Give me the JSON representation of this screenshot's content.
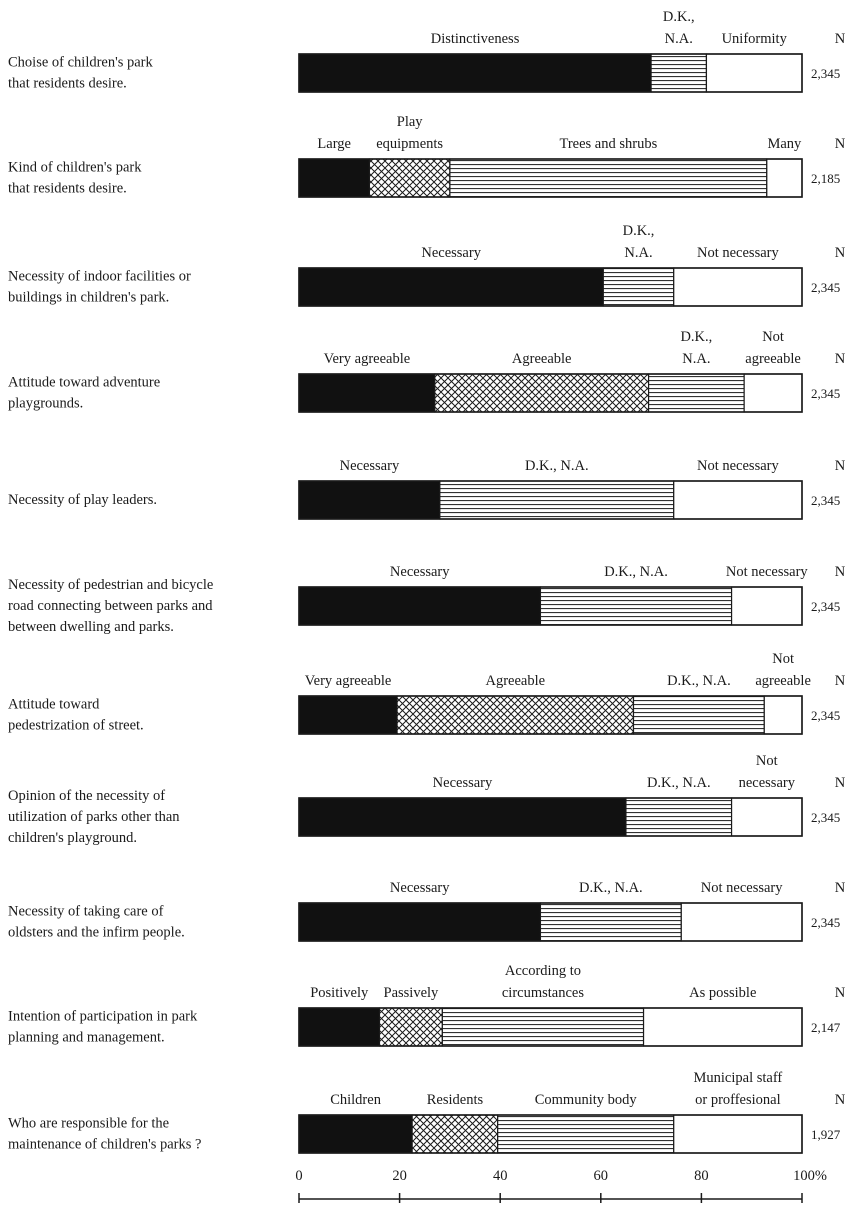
{
  "chart_data": {
    "type": "bar",
    "orientation": "horizontal",
    "stacked": true,
    "percent_stacked": true,
    "xlim": [
      0,
      100
    ],
    "x_ticks": [
      "0",
      "20",
      "40",
      "60",
      "80",
      "100%"
    ],
    "n_header": "N",
    "rows": [
      {
        "label": [
          "Choise of children's park",
          "that residents desire."
        ],
        "n": "2,345",
        "segments": [
          {
            "name": [
              "Distinctiveness"
            ],
            "value": 70,
            "pattern": "solid"
          },
          {
            "name": [
              "D.K.,",
              "N.A."
            ],
            "value": 11,
            "pattern": "hlines"
          },
          {
            "name": [
              "Uniformity"
            ],
            "value": 19,
            "pattern": "blank"
          }
        ]
      },
      {
        "label": [
          "Kind of children's park",
          "that residents desire."
        ],
        "n": "2,185",
        "segments": [
          {
            "name": [
              "Large"
            ],
            "value": 14,
            "pattern": "solid"
          },
          {
            "name": [
              "Play",
              "equipments"
            ],
            "value": 16,
            "pattern": "crosshatch"
          },
          {
            "name": [
              "Trees and shrubs"
            ],
            "value": 63,
            "pattern": "hlines"
          },
          {
            "name": [
              "Many"
            ],
            "value": 7,
            "pattern": "blank"
          }
        ]
      },
      {
        "label": [
          "Necessity of indoor facilities or",
          "buildings in children's park."
        ],
        "n": "2,345",
        "segments": [
          {
            "name": [
              "Necessary"
            ],
            "value": 60.5,
            "pattern": "solid"
          },
          {
            "name": [
              "D.K.,",
              "N.A."
            ],
            "value": 14,
            "pattern": "hlines"
          },
          {
            "name": [
              "Not necessary"
            ],
            "value": 25.5,
            "pattern": "blank"
          }
        ]
      },
      {
        "label": [
          "Attitude toward adventure",
          "playgrounds."
        ],
        "n": "2,345",
        "segments": [
          {
            "name": [
              "Very agreeable"
            ],
            "value": 27,
            "pattern": "solid"
          },
          {
            "name": [
              "Agreeable"
            ],
            "value": 42.5,
            "pattern": "crosshatch"
          },
          {
            "name": [
              "D.K.,",
              "N.A."
            ],
            "value": 19,
            "pattern": "hlines"
          },
          {
            "name": [
              "Not",
              "agreeable"
            ],
            "value": 11.5,
            "pattern": "blank"
          }
        ]
      },
      {
        "label": [
          "Necessity of play leaders."
        ],
        "n": "2,345",
        "segments": [
          {
            "name": [
              "Necessary"
            ],
            "value": 28,
            "pattern": "solid"
          },
          {
            "name": [
              "D.K., N.A."
            ],
            "value": 46.5,
            "pattern": "hlines"
          },
          {
            "name": [
              "Not necessary"
            ],
            "value": 25.5,
            "pattern": "blank"
          }
        ]
      },
      {
        "label": [
          "Necessity of pedestrian and bicycle",
          "road connecting between parks and",
          "between dwelling and parks."
        ],
        "n": "2,345",
        "segments": [
          {
            "name": [
              "Necessary"
            ],
            "value": 48,
            "pattern": "solid"
          },
          {
            "name": [
              "D.K., N.A."
            ],
            "value": 38,
            "pattern": "hlines"
          },
          {
            "name": [
              "Not necessary"
            ],
            "value": 14,
            "pattern": "blank"
          }
        ]
      },
      {
        "label": [
          "Attitude toward",
          "pedestrization of street."
        ],
        "n": "2,345",
        "segments": [
          {
            "name": [
              "Very agreeable"
            ],
            "value": 19.5,
            "pattern": "solid"
          },
          {
            "name": [
              "Agreeable"
            ],
            "value": 47,
            "pattern": "crosshatch"
          },
          {
            "name": [
              "D.K., N.A."
            ],
            "value": 26,
            "pattern": "hlines"
          },
          {
            "name": [
              "Not",
              "agreeable"
            ],
            "value": 7.5,
            "pattern": "blank"
          }
        ]
      },
      {
        "label": [
          "Opinion of the necessity of",
          "utilization of parks other than",
          "children's playground."
        ],
        "n": "2,345",
        "segments": [
          {
            "name": [
              "Necessary"
            ],
            "value": 65,
            "pattern": "solid"
          },
          {
            "name": [
              "D.K., N.A."
            ],
            "value": 21,
            "pattern": "hlines"
          },
          {
            "name": [
              "Not",
              "necessary"
            ],
            "value": 14,
            "pattern": "blank"
          }
        ]
      },
      {
        "label": [
          "Necessity of taking care of",
          "oldsters and the infirm people."
        ],
        "n": "2,345",
        "segments": [
          {
            "name": [
              "Necessary"
            ],
            "value": 48,
            "pattern": "solid"
          },
          {
            "name": [
              "D.K., N.A."
            ],
            "value": 28,
            "pattern": "hlines"
          },
          {
            "name": [
              "Not necessary"
            ],
            "value": 24,
            "pattern": "blank"
          }
        ]
      },
      {
        "label": [
          "Intention of participation in park",
          "planning and management."
        ],
        "n": "2,147",
        "segments": [
          {
            "name": [
              "Positively"
            ],
            "value": 16,
            "pattern": "solid"
          },
          {
            "name": [
              "Passively"
            ],
            "value": 12.5,
            "pattern": "crosshatch"
          },
          {
            "name": [
              "According to",
              "circumstances"
            ],
            "value": 40,
            "pattern": "hlines"
          },
          {
            "name": [
              "As possible"
            ],
            "value": 31.5,
            "pattern": "blank"
          }
        ]
      },
      {
        "label": [
          "Who are responsible for the",
          "maintenance of children's parks ?"
        ],
        "n": "1,927",
        "segments": [
          {
            "name": [
              "Children"
            ],
            "value": 22.5,
            "pattern": "solid"
          },
          {
            "name": [
              "Residents"
            ],
            "value": 17,
            "pattern": "crosshatch"
          },
          {
            "name": [
              "Community body"
            ],
            "value": 35,
            "pattern": "hlines"
          },
          {
            "name": [
              "Municipal staff",
              "or proffesional"
            ],
            "value": 25.5,
            "pattern": "blank"
          }
        ]
      }
    ]
  }
}
